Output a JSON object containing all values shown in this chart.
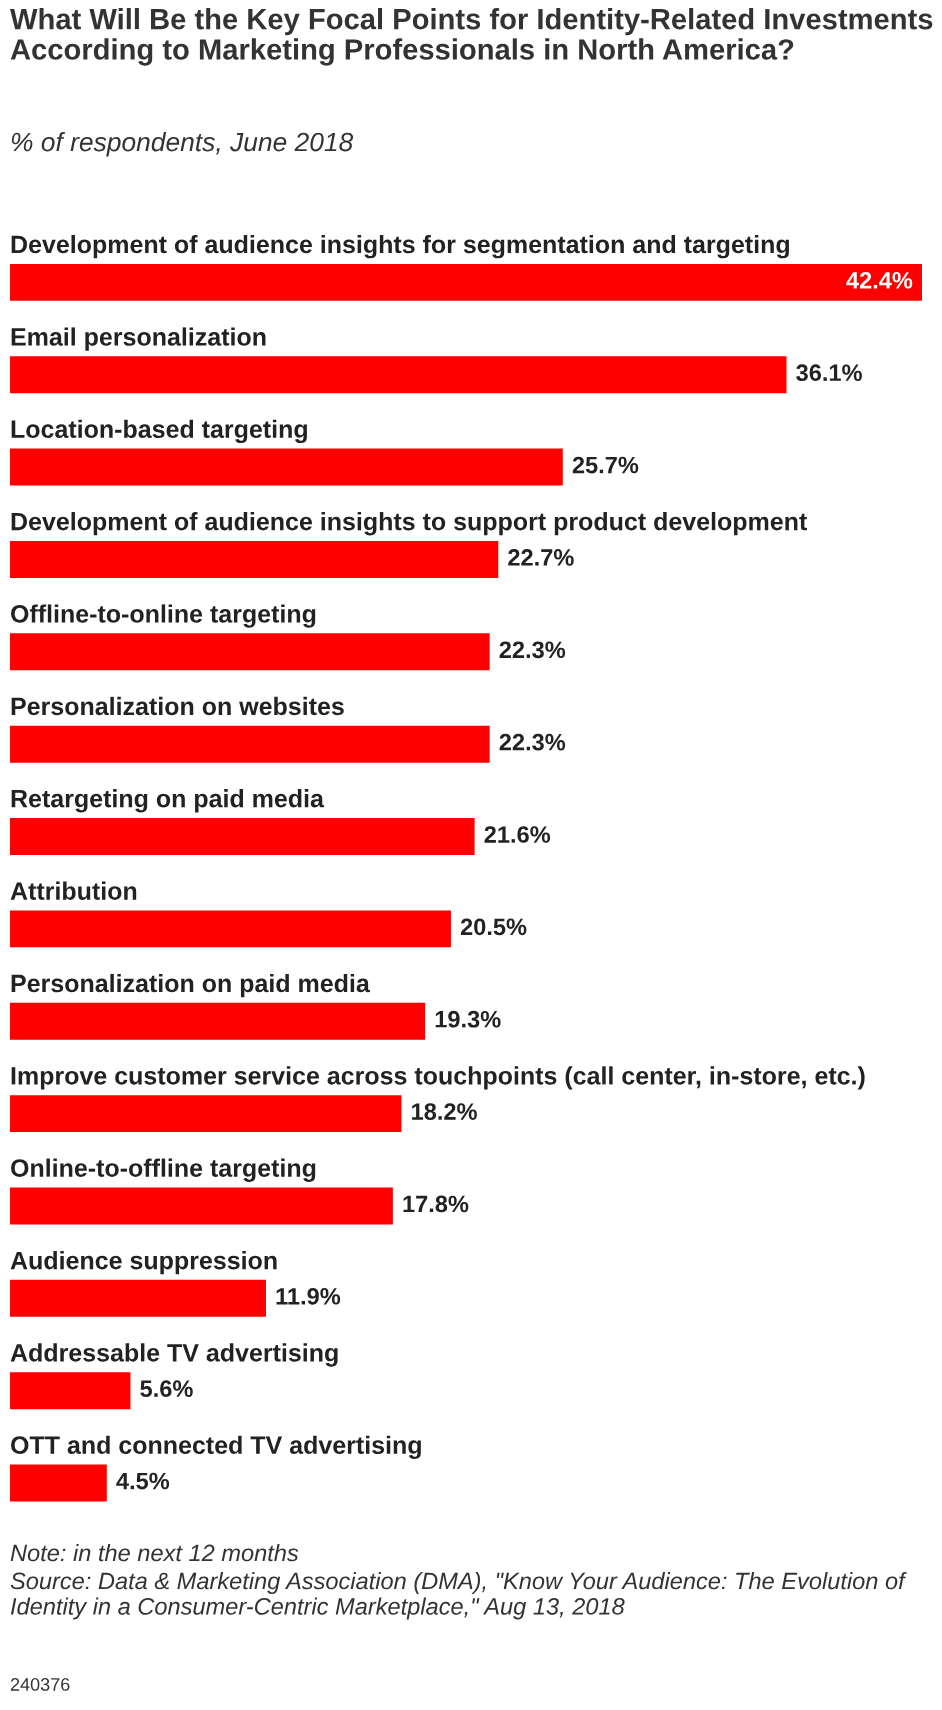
{
  "chart_data": {
    "type": "bar",
    "orientation": "horizontal",
    "title": "What Will Be the Key Focal Points for Identity-Related Investments According to Marketing Professionals in North America?",
    "subtitle": "% of respondents, June 2018",
    "categories": [
      "Development of audience insights for segmentation and targeting",
      "Email personalization",
      "Location-based targeting",
      "Development of audience insights to support product development",
      "Offline-to-online targeting",
      "Personalization on websites",
      "Retargeting on paid media",
      "Attribution",
      "Personalization on paid media",
      "Improve customer service across touchpoints (call center, in-store, etc.)",
      "Online-to-offline targeting",
      "Audience suppression",
      "Addressable TV advertising",
      "OTT and connected TV advertising"
    ],
    "values": [
      42.4,
      36.1,
      25.7,
      22.7,
      22.3,
      22.3,
      21.6,
      20.5,
      19.3,
      18.2,
      17.8,
      11.9,
      5.6,
      4.5
    ],
    "value_labels": [
      "42.4%",
      "36.1%",
      "25.7%",
      "22.7%",
      "22.3%",
      "22.3%",
      "21.6%",
      "20.5%",
      "19.3%",
      "18.2%",
      "17.8%",
      "11.9%",
      "5.6%",
      "4.5%"
    ],
    "color": "#ff0000",
    "annotations": [
      "Note: in the next 12 months",
      "Source: Data & Marketing Association (DMA), \"Know Your Audience: The Evolution of Identity in a Consumer-Centric Marketplace,\" Aug 13, 2018",
      "240376"
    ]
  }
}
